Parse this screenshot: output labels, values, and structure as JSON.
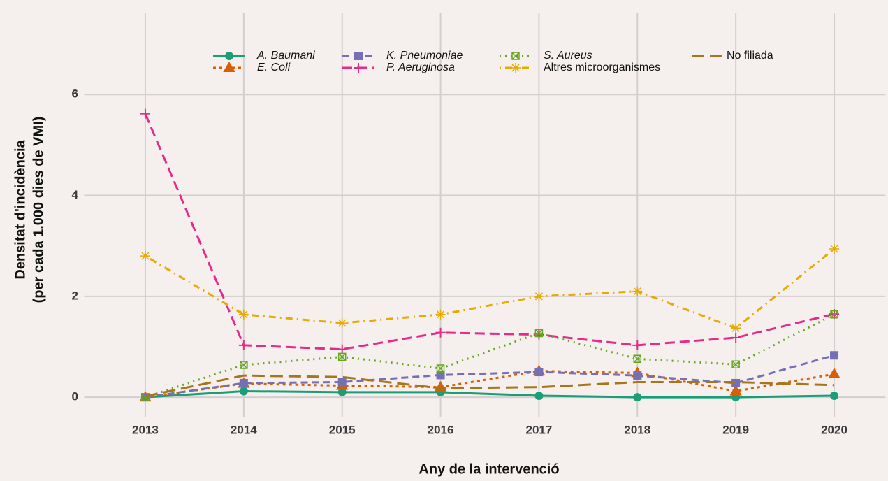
{
  "chart_data": {
    "type": "line",
    "x_label": "Any de la intervenció",
    "y_label": [
      "Densitat d'incidència",
      "(per cada 1.000 dies de VMI)"
    ],
    "x": [
      2013,
      2014,
      2015,
      2016,
      2017,
      2018,
      2019,
      2020
    ],
    "xlim": [
      2012.45,
      2020.45
    ],
    "xticks": [
      2013,
      2014,
      2015,
      2016,
      2017,
      2018,
      2019,
      2020
    ],
    "ylim": [
      -0.4,
      7.5
    ],
    "yticks": [
      0,
      2,
      4,
      6
    ],
    "grid": true,
    "series": [
      {
        "name": "A. Baumani",
        "color": "#1b9e77",
        "dash": "solid",
        "marker": "circle",
        "italic": true,
        "values": [
          0,
          0.12,
          0.1,
          0.1,
          0.03,
          0,
          0,
          0.03
        ]
      },
      {
        "name": "E. Coli",
        "color": "#d95f02",
        "dash": "dotted",
        "marker": "triangle",
        "italic": true,
        "values": [
          0,
          0.27,
          0.23,
          0.2,
          0.52,
          0.48,
          0.12,
          0.46
        ]
      },
      {
        "name": "K. Pneumoniae",
        "color": "#7570b3",
        "dash": "dashed",
        "marker": "square",
        "italic": true,
        "values": [
          0,
          0.28,
          0.3,
          0.44,
          0.5,
          0.43,
          0.28,
          0.83
        ]
      },
      {
        "name": "P. Aeruginosa",
        "color": "#e7298a",
        "dash": "longdash",
        "marker": "plus",
        "italic": true,
        "values": [
          5.62,
          1.03,
          0.95,
          1.28,
          1.24,
          1.03,
          1.18,
          1.65
        ]
      },
      {
        "name": "S. Aureus",
        "color": "#66a61e",
        "dash": "dot",
        "marker": "boxcross",
        "italic": true,
        "values": [
          0,
          0.64,
          0.8,
          0.57,
          1.27,
          0.76,
          0.65,
          1.64
        ]
      },
      {
        "name": "Altres microorganismes",
        "color": "#e6ab02",
        "dash": "dotdash",
        "marker": "asterisk",
        "italic": false,
        "values": [
          2.8,
          1.64,
          1.47,
          1.64,
          2.0,
          2.1,
          1.37,
          2.94
        ]
      },
      {
        "name": "No filiada",
        "color": "#a6761d",
        "dash": "twodash",
        "marker": "none",
        "italic": false,
        "values": [
          0.02,
          0.43,
          0.4,
          0.18,
          0.2,
          0.3,
          0.3,
          0.24
        ]
      }
    ]
  }
}
